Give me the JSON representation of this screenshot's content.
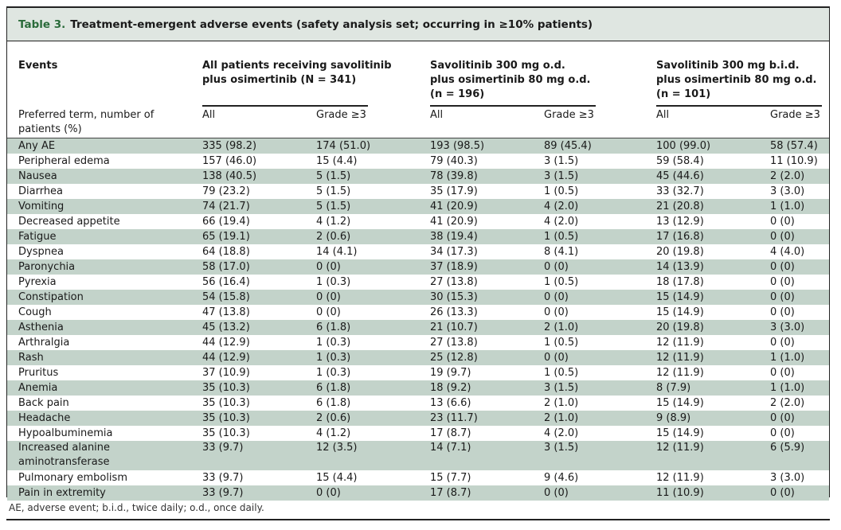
{
  "table": {
    "label": "Table 3.",
    "title": "Treatment-emergent adverse events (safety analysis set; occurring in ≥10% patients)",
    "header": {
      "events": "Events",
      "row_desc": "Preferred term, number of patients (%)",
      "groups": [
        {
          "line1": "All patients receiving savolitinib",
          "line2": "plus osimertinib (N = 341)",
          "line3": ""
        },
        {
          "line1": "Savolitinib 300 mg o.d.",
          "line2": "plus osimertinib 80 mg o.d.",
          "line3": "(n = 196)"
        },
        {
          "line1": "Savolitinib 300 mg b.i.d.",
          "line2": "plus osimertinib 80 mg o.d.",
          "line3": "(n = 101)"
        }
      ],
      "sub_all": "All",
      "sub_grade": "Grade ≥3"
    },
    "rows": [
      {
        "event": "Any AE",
        "v": [
          "335 (98.2)",
          "174 (51.0)",
          "193 (98.5)",
          "89 (45.4)",
          "100 (99.0)",
          "58 (57.4)"
        ]
      },
      {
        "event": "Peripheral edema",
        "v": [
          "157 (46.0)",
          "15 (4.4)",
          "79 (40.3)",
          "3 (1.5)",
          "59 (58.4)",
          "11 (10.9)"
        ]
      },
      {
        "event": "Nausea",
        "v": [
          "138 (40.5)",
          "5 (1.5)",
          "78 (39.8)",
          "3 (1.5)",
          "45 (44.6)",
          "2 (2.0)"
        ]
      },
      {
        "event": "Diarrhea",
        "v": [
          "79 (23.2)",
          "5 (1.5)",
          "35 (17.9)",
          "1 (0.5)",
          "33 (32.7)",
          "3 (3.0)"
        ]
      },
      {
        "event": "Vomiting",
        "v": [
          "74 (21.7)",
          "5 (1.5)",
          "41 (20.9)",
          "4 (2.0)",
          "21 (20.8)",
          "1 (1.0)"
        ]
      },
      {
        "event": "Decreased appetite",
        "v": [
          "66 (19.4)",
          "4 (1.2)",
          "41 (20.9)",
          "4 (2.0)",
          "13 (12.9)",
          "0 (0)"
        ]
      },
      {
        "event": "Fatigue",
        "v": [
          "65 (19.1)",
          "2 (0.6)",
          "38 (19.4)",
          "1 (0.5)",
          "17 (16.8)",
          "0 (0)"
        ]
      },
      {
        "event": "Dyspnea",
        "v": [
          "64 (18.8)",
          "14 (4.1)",
          "34 (17.3)",
          "8 (4.1)",
          "20 (19.8)",
          "4 (4.0)"
        ]
      },
      {
        "event": "Paronychia",
        "v": [
          "58 (17.0)",
          "0 (0)",
          "37 (18.9)",
          "0 (0)",
          "14 (13.9)",
          "0 (0)"
        ]
      },
      {
        "event": "Pyrexia",
        "v": [
          "56 (16.4)",
          "1 (0.3)",
          "27 (13.8)",
          "1 (0.5)",
          "18 (17.8)",
          "0 (0)"
        ]
      },
      {
        "event": "Constipation",
        "v": [
          "54 (15.8)",
          "0 (0)",
          "30 (15.3)",
          "0 (0)",
          "15 (14.9)",
          "0 (0)"
        ]
      },
      {
        "event": "Cough",
        "v": [
          "47 (13.8)",
          "0 (0)",
          "26 (13.3)",
          "0 (0)",
          "15 (14.9)",
          "0 (0)"
        ]
      },
      {
        "event": "Asthenia",
        "v": [
          "45 (13.2)",
          "6 (1.8)",
          "21 (10.7)",
          "2 (1.0)",
          "20 (19.8)",
          "3 (3.0)"
        ]
      },
      {
        "event": "Arthralgia",
        "v": [
          "44 (12.9)",
          "1 (0.3)",
          "27 (13.8)",
          "1 (0.5)",
          "12 (11.9)",
          "0 (0)"
        ]
      },
      {
        "event": "Rash",
        "v": [
          "44 (12.9)",
          "1 (0.3)",
          "25 (12.8)",
          "0 (0)",
          "12 (11.9)",
          "1 (1.0)"
        ]
      },
      {
        "event": "Pruritus",
        "v": [
          "37 (10.9)",
          "1 (0.3)",
          "19 (9.7)",
          "1 (0.5)",
          "12 (11.9)",
          "0 (0)"
        ]
      },
      {
        "event": "Anemia",
        "v": [
          "35 (10.3)",
          "6 (1.8)",
          "18 (9.2)",
          "3 (1.5)",
          "8 (7.9)",
          "1 (1.0)"
        ]
      },
      {
        "event": "Back pain",
        "v": [
          "35 (10.3)",
          "6 (1.8)",
          "13 (6.6)",
          "2 (1.0)",
          "15 (14.9)",
          "2 (2.0)"
        ]
      },
      {
        "event": "Headache",
        "v": [
          "35 (10.3)",
          "2 (0.6)",
          "23 (11.7)",
          "2 (1.0)",
          "9 (8.9)",
          "0 (0)"
        ]
      },
      {
        "event": "Hypoalbuminemia",
        "v": [
          "35 (10.3)",
          "4 (1.2)",
          "17 (8.7)",
          "4 (2.0)",
          "15 (14.9)",
          "0 (0)"
        ]
      },
      {
        "event": "Increased alanine aminotransferase",
        "v": [
          "33 (9.7)",
          "12 (3.5)",
          "14 (7.1)",
          "3 (1.5)",
          "12 (11.9)",
          "6 (5.9)"
        ]
      },
      {
        "event": "Pulmonary embolism",
        "v": [
          "33 (9.7)",
          "15 (4.4)",
          "15 (7.7)",
          "9 (4.6)",
          "12 (11.9)",
          "3 (3.0)"
        ]
      },
      {
        "event": "Pain in extremity",
        "v": [
          "33 (9.7)",
          "0 (0)",
          "17 (8.7)",
          "0 (0)",
          "11 (10.9)",
          "0 (0)"
        ]
      }
    ],
    "footnote": "AE, adverse event; b.i.d., twice daily; o.d., once daily."
  }
}
